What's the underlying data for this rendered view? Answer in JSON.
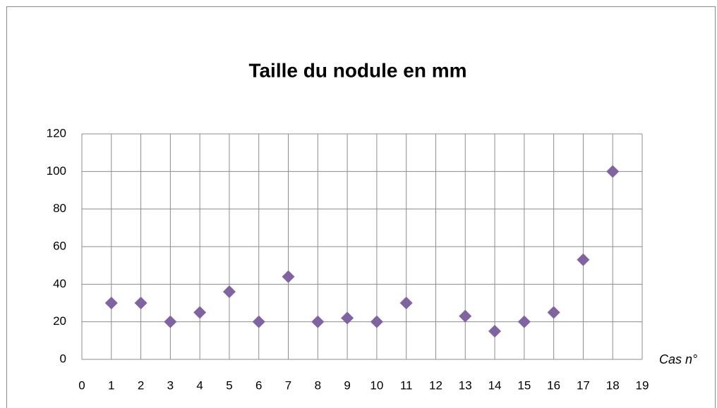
{
  "chart_data": {
    "type": "scatter",
    "title": "Taille du nodule en mm",
    "x_label": "Cas n°",
    "series": [
      {
        "name": "Taille",
        "color": "#8064a2",
        "x": [
          1,
          2,
          3,
          4,
          5,
          6,
          7,
          8,
          9,
          10,
          11,
          13,
          14,
          15,
          16,
          17,
          18
        ],
        "values": [
          30,
          30,
          20,
          25,
          36,
          20,
          44,
          20,
          22,
          20,
          30,
          23,
          15,
          20,
          25,
          53,
          100
        ]
      }
    ],
    "xlim": [
      0,
      19
    ],
    "xticks": [
      0,
      1,
      2,
      3,
      4,
      5,
      6,
      7,
      8,
      9,
      10,
      11,
      12,
      13,
      14,
      15,
      16,
      17,
      18,
      19
    ],
    "ylim": [
      0,
      120
    ],
    "yticks": [
      0,
      20,
      40,
      60,
      80,
      100,
      120
    ],
    "grid": true
  }
}
